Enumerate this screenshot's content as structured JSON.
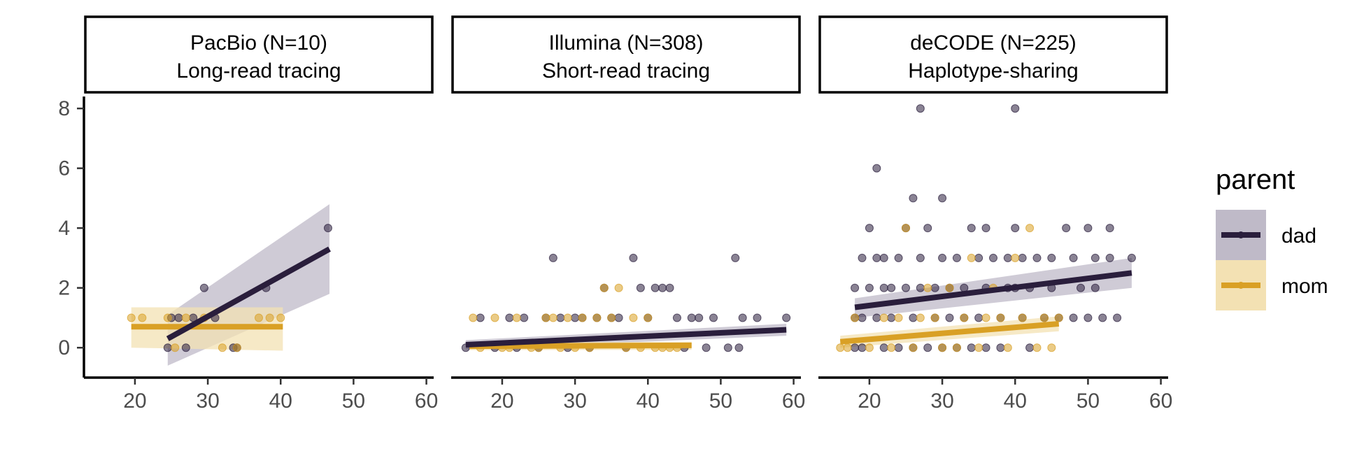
{
  "chart_data": {
    "type": "scatter",
    "layout": "facet-panels",
    "shared_y_axis": true,
    "xlim": [
      13,
      61
    ],
    "ylim": [
      -1,
      8.4
    ],
    "x_ticks": [
      20,
      30,
      40,
      50,
      60
    ],
    "y_ticks": [
      0,
      2,
      4,
      6,
      8
    ],
    "grid": false,
    "legend": {
      "title": "parent",
      "position": "right",
      "entries": [
        {
          "label": "dad",
          "color": "#2a1e3c"
        },
        {
          "label": "mom",
          "color": "#d9a025"
        }
      ]
    },
    "colors": {
      "dad": "#2a1e3c",
      "mom": "#d9a025",
      "dad_band": "#bfbac8",
      "mom_band": "#f3e1b3"
    },
    "panels": [
      {
        "title": "PacBio (N=10)",
        "subtitle": "Long-read tracing",
        "series": [
          {
            "name": "dad",
            "points": [
              [
                24.5,
                0
              ],
              [
                25,
                1
              ],
              [
                26,
                1
              ],
              [
                27,
                0
              ],
              [
                28,
                1
              ],
              [
                29.5,
                2
              ],
              [
                31,
                1
              ],
              [
                33.5,
                0
              ],
              [
                34,
                0
              ],
              [
                38,
                2
              ],
              [
                46.5,
                4
              ]
            ],
            "fit": {
              "x": [
                24.5,
                46.7
              ],
              "y": [
                0.3,
                3.3
              ],
              "band_low": [
                -0.6,
                1.8
              ],
              "band_high": [
                1.1,
                4.8
              ]
            }
          },
          {
            "name": "mom",
            "points": [
              [
                19.5,
                1
              ],
              [
                21,
                1
              ],
              [
                24.5,
                1
              ],
              [
                25.5,
                0
              ],
              [
                27,
                1
              ],
              [
                29.5,
                1
              ],
              [
                32,
                0
              ],
              [
                34,
                0
              ],
              [
                37,
                1
              ],
              [
                38.5,
                1
              ],
              [
                40,
                1
              ]
            ],
            "fit": {
              "x": [
                19.5,
                40.3
              ],
              "y": [
                0.7,
                0.7
              ],
              "band_low": [
                0.0,
                -0.1
              ],
              "band_high": [
                1.35,
                1.35
              ]
            }
          }
        ]
      },
      {
        "title": "Illumina (N=308)",
        "subtitle": "Short-read tracing",
        "series": [
          {
            "name": "dad",
            "points": [
              [
                15,
                0
              ],
              [
                17,
                1
              ],
              [
                19,
                0
              ],
              [
                21,
                1
              ],
              [
                22,
                0
              ],
              [
                23,
                1
              ],
              [
                25,
                0
              ],
              [
                26,
                1
              ],
              [
                27,
                3
              ],
              [
                28,
                1
              ],
              [
                29,
                0
              ],
              [
                30,
                1
              ],
              [
                31,
                1
              ],
              [
                32,
                0
              ],
              [
                33,
                1
              ],
              [
                34,
                2
              ],
              [
                35,
                1
              ],
              [
                36,
                1
              ],
              [
                37,
                0
              ],
              [
                38,
                3
              ],
              [
                39,
                2
              ],
              [
                40,
                1
              ],
              [
                41,
                2
              ],
              [
                42,
                2
              ],
              [
                43,
                2
              ],
              [
                44,
                1
              ],
              [
                45,
                0
              ],
              [
                46,
                1
              ],
              [
                47,
                1
              ],
              [
                48,
                0
              ],
              [
                49,
                1
              ],
              [
                51,
                0
              ],
              [
                52,
                3
              ],
              [
                52.5,
                0
              ],
              [
                53,
                1
              ],
              [
                55,
                1
              ],
              [
                59,
                1
              ]
            ],
            "fit": {
              "x": [
                15,
                59
              ],
              "y": [
                0.1,
                0.6
              ],
              "band_low": [
                -0.05,
                0.4
              ],
              "band_high": [
                0.25,
                0.8
              ]
            }
          },
          {
            "name": "mom",
            "points": [
              [
                16,
                1
              ],
              [
                17,
                0
              ],
              [
                19,
                1
              ],
              [
                20,
                0
              ],
              [
                21,
                0
              ],
              [
                22,
                1
              ],
              [
                24,
                0
              ],
              [
                25,
                0
              ],
              [
                26,
                1
              ],
              [
                27,
                1
              ],
              [
                28,
                0
              ],
              [
                29,
                1
              ],
              [
                30,
                0
              ],
              [
                31,
                1
              ],
              [
                32,
                0
              ],
              [
                33,
                1
              ],
              [
                34,
                2
              ],
              [
                35,
                1
              ],
              [
                36,
                2
              ],
              [
                37,
                0
              ],
              [
                38,
                1
              ],
              [
                39,
                0
              ],
              [
                40,
                1
              ],
              [
                41,
                0
              ],
              [
                42,
                0
              ],
              [
                43,
                0
              ],
              [
                44,
                0
              ]
            ],
            "fit": {
              "x": [
                15.5,
                46
              ],
              "y": [
                0.05,
                0.08
              ],
              "band_low": [
                -0.08,
                -0.07
              ],
              "band_high": [
                0.18,
                0.2
              ]
            }
          }
        ]
      },
      {
        "title": "deCODE (N=225)",
        "subtitle": "Haplotype-sharing",
        "series": [
          {
            "name": "dad",
            "points": [
              [
                18,
                0
              ],
              [
                18,
                1
              ],
              [
                18,
                2
              ],
              [
                19,
                0
              ],
              [
                19,
                1
              ],
              [
                19,
                3
              ],
              [
                20,
                4
              ],
              [
                20,
                2
              ],
              [
                21,
                6
              ],
              [
                21,
                1
              ],
              [
                21,
                3
              ],
              [
                22,
                0
              ],
              [
                22,
                2
              ],
              [
                22,
                3
              ],
              [
                23,
                1
              ],
              [
                23,
                2
              ],
              [
                24,
                0
              ],
              [
                24,
                3
              ],
              [
                25,
                4
              ],
              [
                25,
                2
              ],
              [
                26,
                5
              ],
              [
                26,
                1
              ],
              [
                26,
                0
              ],
              [
                27,
                8
              ],
              [
                27,
                3
              ],
              [
                27,
                2
              ],
              [
                28,
                4
              ],
              [
                28,
                0
              ],
              [
                29,
                2
              ],
              [
                29,
                1
              ],
              [
                30,
                5
              ],
              [
                30,
                3
              ],
              [
                30,
                0
              ],
              [
                31,
                2
              ],
              [
                31,
                1
              ],
              [
                32,
                3
              ],
              [
                32,
                0
              ],
              [
                33,
                1
              ],
              [
                33,
                2
              ],
              [
                34,
                4
              ],
              [
                34,
                0
              ],
              [
                35,
                3
              ],
              [
                35,
                1
              ],
              [
                36,
                4
              ],
              [
                36,
                2
              ],
              [
                36,
                0
              ],
              [
                37,
                3
              ],
              [
                38,
                1
              ],
              [
                38,
                0
              ],
              [
                39,
                2
              ],
              [
                39,
                3
              ],
              [
                40,
                8
              ],
              [
                40,
                4
              ],
              [
                40,
                2
              ],
              [
                41,
                1
              ],
              [
                41,
                3
              ],
              [
                42,
                0
              ],
              [
                42,
                2
              ],
              [
                43,
                3
              ],
              [
                44,
                1
              ],
              [
                45,
                2
              ],
              [
                45,
                3
              ],
              [
                46,
                1
              ],
              [
                47,
                4
              ],
              [
                48,
                3
              ],
              [
                48,
                1
              ],
              [
                49,
                2
              ],
              [
                50,
                4
              ],
              [
                50,
                1
              ],
              [
                51,
                3
              ],
              [
                51,
                2
              ],
              [
                52,
                1
              ],
              [
                53,
                4
              ],
              [
                53,
                3
              ],
              [
                54,
                1
              ],
              [
                56,
                3
              ]
            ],
            "fit": {
              "x": [
                18,
                56
              ],
              "y": [
                1.35,
                2.5
              ],
              "band_low": [
                1.0,
                2.0
              ],
              "band_high": [
                1.65,
                3.0
              ]
            }
          },
          {
            "name": "mom",
            "points": [
              [
                16,
                0
              ],
              [
                17,
                0
              ],
              [
                18,
                1
              ],
              [
                20,
                0
              ],
              [
                22,
                1
              ],
              [
                23,
                0
              ],
              [
                24,
                1
              ],
              [
                25,
                4
              ],
              [
                26,
                0
              ],
              [
                27,
                1
              ],
              [
                28,
                2
              ],
              [
                29,
                1
              ],
              [
                30,
                0
              ],
              [
                31,
                2
              ],
              [
                32,
                0
              ],
              [
                33,
                1
              ],
              [
                34,
                3
              ],
              [
                35,
                0
              ],
              [
                36,
                1
              ],
              [
                37,
                2
              ],
              [
                38,
                1
              ],
              [
                39,
                0
              ],
              [
                40,
                3
              ],
              [
                41,
                1
              ],
              [
                42,
                4
              ],
              [
                43,
                0
              ],
              [
                44,
                1
              ],
              [
                45,
                0
              ],
              [
                46,
                1
              ]
            ],
            "fit": {
              "x": [
                16,
                46
              ],
              "y": [
                0.2,
                0.8
              ],
              "band_low": [
                0.0,
                0.55
              ],
              "band_high": [
                0.4,
                1.05
              ]
            }
          }
        ]
      }
    ]
  }
}
